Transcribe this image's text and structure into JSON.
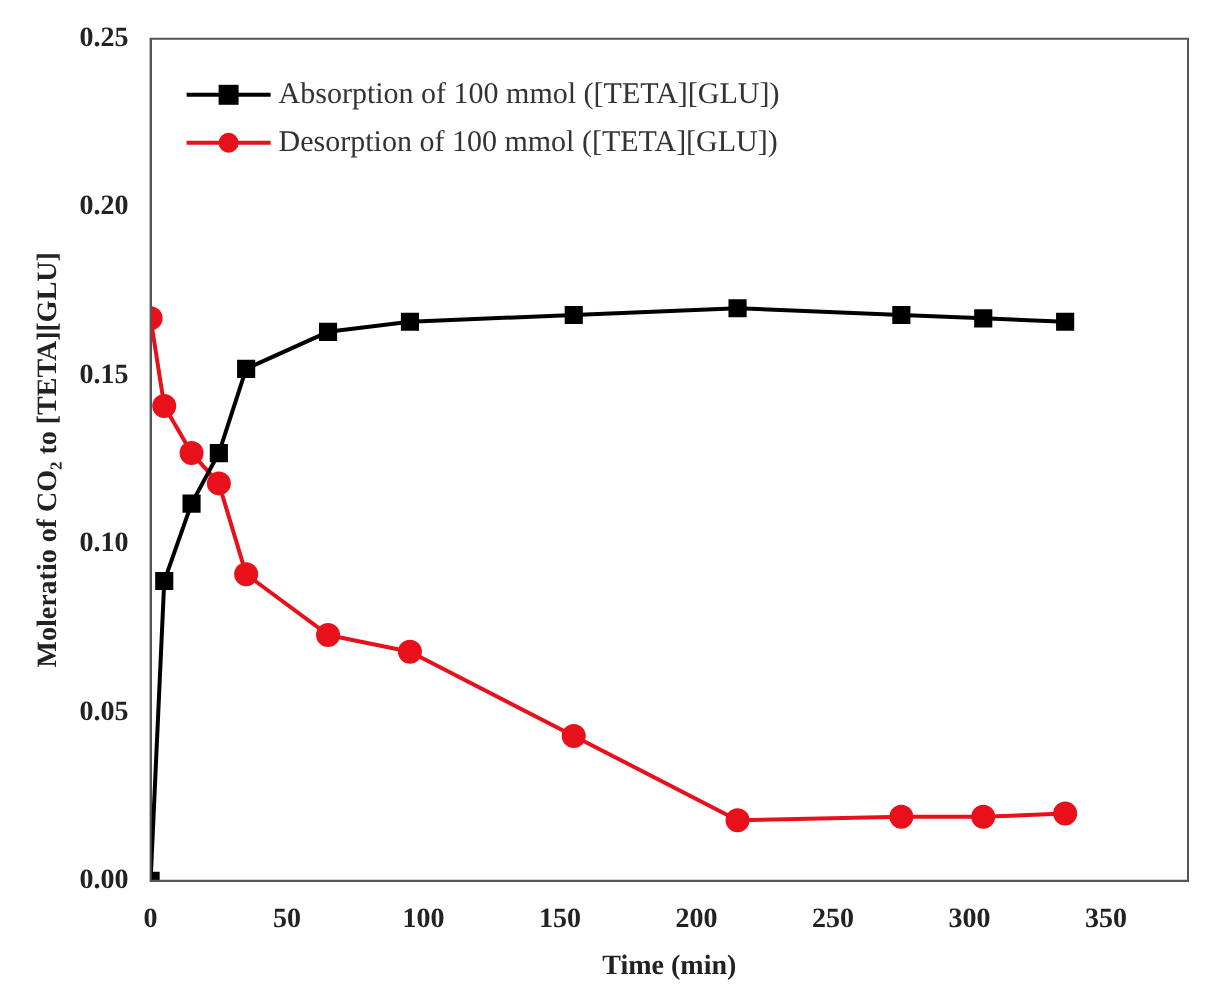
{
  "chart_data": {
    "type": "line",
    "xlabel": "Time (min)",
    "ylabel": "Moleratio of CO₂ to [TETA][GLU]",
    "xlim": [
      0,
      380
    ],
    "xticks": [
      0,
      50,
      100,
      150,
      200,
      250,
      300,
      350
    ],
    "ylim": [
      0,
      0.25
    ],
    "yticks": [
      {
        "value": 0,
        "label": "0.00"
      },
      {
        "value": 0.05,
        "label": "0.05"
      },
      {
        "value": 0.1,
        "label": "0.10"
      },
      {
        "value": 0.15,
        "label": "0.15"
      },
      {
        "value": 0.2,
        "label": "0.20"
      },
      {
        "value": 0.25,
        "label": "0.25"
      }
    ],
    "x": [
      0,
      5,
      15,
      25,
      35,
      65,
      95,
      155,
      215,
      275,
      305,
      335
    ],
    "series": [
      {
        "name": "Absorption of 100 mmol ([TETA][GLU])",
        "color": "#000000",
        "marker": "square",
        "values": [
          0,
          0.089,
          0.112,
          0.127,
          0.152,
          0.163,
          0.166,
          0.168,
          0.17,
          0.168,
          0.167,
          0.166
        ]
      },
      {
        "name": "Desorption of 100 mmol ([TETA][GLU])",
        "color": "#e8101a",
        "marker": "circle",
        "values": [
          0.167,
          0.141,
          0.127,
          0.118,
          0.091,
          0.073,
          0.068,
          0.043,
          0.018,
          0.019,
          0.019,
          0.02
        ]
      }
    ],
    "grid": false,
    "legend": "top left",
    "line_style": "solid"
  }
}
